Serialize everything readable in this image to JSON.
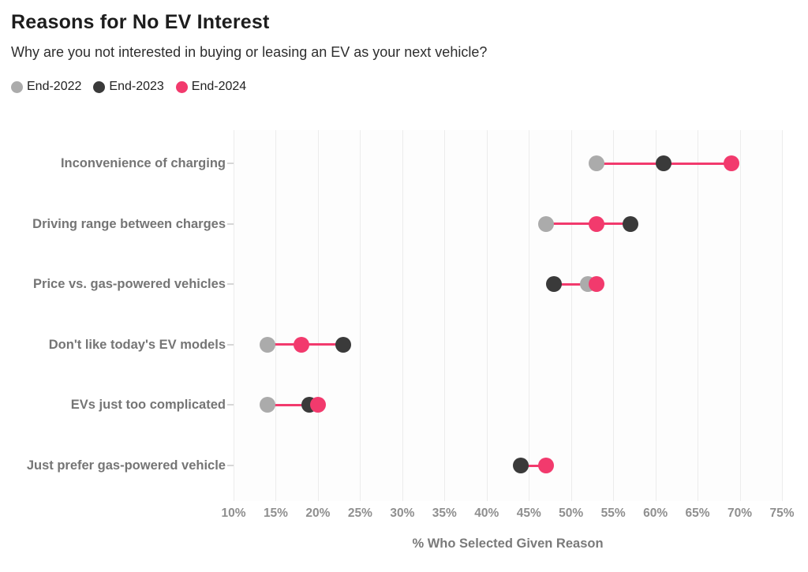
{
  "header": {
    "title": "Reasons for No EV Interest",
    "subtitle": "Why are you not interested in buying or leasing an EV as your next vehicle?"
  },
  "legend": {
    "items": [
      {
        "label": "End-2022",
        "color": "#ABABAB"
      },
      {
        "label": "End-2023",
        "color": "#3A3A3A"
      },
      {
        "label": "End-2024",
        "color": "#F23A6D"
      }
    ]
  },
  "chart_data": {
    "type": "scatter",
    "subtype": "dot-range-plot",
    "title": "Reasons for No EV Interest",
    "subtitle": "Why are you not interested in buying or leasing an EV as your next vehicle?",
    "categories": [
      "Inconvenience of charging",
      "Driving range between charges",
      "Price vs. gas-powered vehicles",
      "Don't like today's EV models",
      "EVs just too complicated",
      "Just prefer gas-powered vehicle"
    ],
    "series": [
      {
        "name": "End-2022",
        "color": "#ABABAB",
        "values": [
          53,
          47,
          52,
          14,
          14,
          null
        ]
      },
      {
        "name": "End-2023",
        "color": "#3A3A3A",
        "values": [
          61,
          57,
          48,
          23,
          19,
          44
        ]
      },
      {
        "name": "End-2024",
        "color": "#F23A6D",
        "values": [
          69,
          53,
          53,
          18,
          20,
          47
        ]
      }
    ],
    "x_tick_values": [
      10,
      15,
      20,
      25,
      30,
      35,
      40,
      45,
      50,
      55,
      60,
      65,
      70,
      75
    ],
    "x_tick_labels": [
      "10%",
      "15%",
      "20%",
      "25%",
      "30%",
      "35%",
      "40%",
      "45%",
      "50%",
      "55%",
      "60%",
      "65%",
      "70%",
      "75%"
    ],
    "xlim": [
      10,
      75
    ],
    "xlabel": "% Who Selected Given Reason",
    "grid": "vertical",
    "legend_position": "top-left",
    "connector_color": "#F23A6D",
    "gridline_color": "#ECECEC",
    "ytick_color": "#D6D6D6",
    "plot_background": "#FDFDFD",
    "unit": "percent"
  }
}
